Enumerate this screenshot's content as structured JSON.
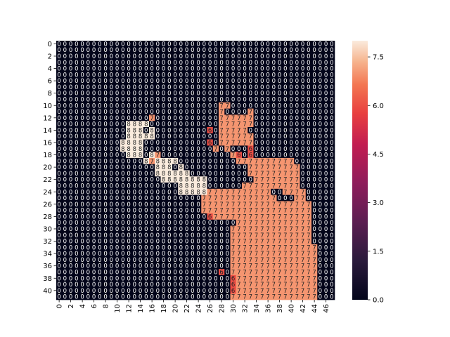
{
  "chart_data": {
    "type": "heatmap",
    "title": "",
    "xlabel": "",
    "ylabel": "",
    "rows": 42,
    "cols": 48,
    "x_tick_labels": [
      "0",
      "2",
      "4",
      "6",
      "8",
      "10",
      "12",
      "14",
      "16",
      "18",
      "20",
      "22",
      "24",
      "26",
      "28",
      "30",
      "32",
      "34",
      "36",
      "38",
      "40",
      "42",
      "44",
      "46"
    ],
    "y_tick_labels": [
      "0",
      "2",
      "4",
      "6",
      "8",
      "10",
      "12",
      "14",
      "16",
      "18",
      "20",
      "22",
      "24",
      "26",
      "28",
      "30",
      "32",
      "34",
      "36",
      "38",
      "40"
    ],
    "colorbar": {
      "min": 0,
      "max": 8,
      "ticks": [
        "0.0",
        "1.5",
        "3.0",
        "4.5",
        "6.0",
        "7.5"
      ],
      "tick_values": [
        0,
        1.5,
        3.0,
        4.5,
        6.0,
        7.5
      ],
      "colormap": "rocket"
    },
    "annotations": true,
    "matrix": [
      "000000000000000000000000000000000000000000000000",
      "000000000000000000000000000000000000000000000000",
      "000000000000000000000000000000000000000000000000",
      "000000000000000000000000000000000000000000000000",
      "000000000000000000000000000000000000000000000000",
      "000000000000000000000000000000000000000000000000",
      "000000000000000000000000000000000000000000000000",
      "000000000000000000000000000000000000000000000000",
      "000000000000000000000000000000000000000000000000",
      "000000000000000000000000000000000000000000000000",
      "000000000000000000000000000077000000000000000000",
      "000000000000000000000000000070000700000000000000",
      "000000000000000070000000000077777700000000000000",
      "000000000000888800000000000077777700000000000000",
      "000000000000888080000000006077777000000000000000",
      "000000000000888880000000000077777700000000000000",
      "000000000008888000000000006077777700000000000000",
      "000000000008888000000000000707000600000000000000",
      "000000000000888087000000000000760600000000000000",
      "000000000000000878888000000000077777777770000000",
      "000000000000000008880800000000000777777777000000",
      "000000000000000008888880000000000777777777000000",
      "000000000000000000888888880000000077777777000000",
      "000000000000000000000888880000007777777777000000",
      "000000000000000000000888887777777777700777700000",
      "000000000000000000000000077777777777770007700000",
      "000000000000000000000000077777777777777777770000",
      "000000000000000000000000077777777777777777770000",
      "000000000000000000000000006777777777777777770000",
      "000000000000000000000000000000077777777777770000",
      "000000000000000000000000000000777777777777770000",
      "000000000000000000000000000000777777777777770000",
      "000000000000000000000000000000777777777777770000",
      "000000000000000000000000000000777777777777777000",
      "000000000000000000000000000000777777777777777000",
      "000000000000000000000000000000777777777777777000",
      "000000000000000000000000000000777777777777777000",
      "000000000000000000000000000060777777777777777000",
      "000000000000000000000000000000677777777777777000",
      "000000000000000000000000000000677777777777777000",
      "000000000000000000000000000000677777777777777000",
      "000000000000000000000000000000777777777777777000"
    ]
  }
}
